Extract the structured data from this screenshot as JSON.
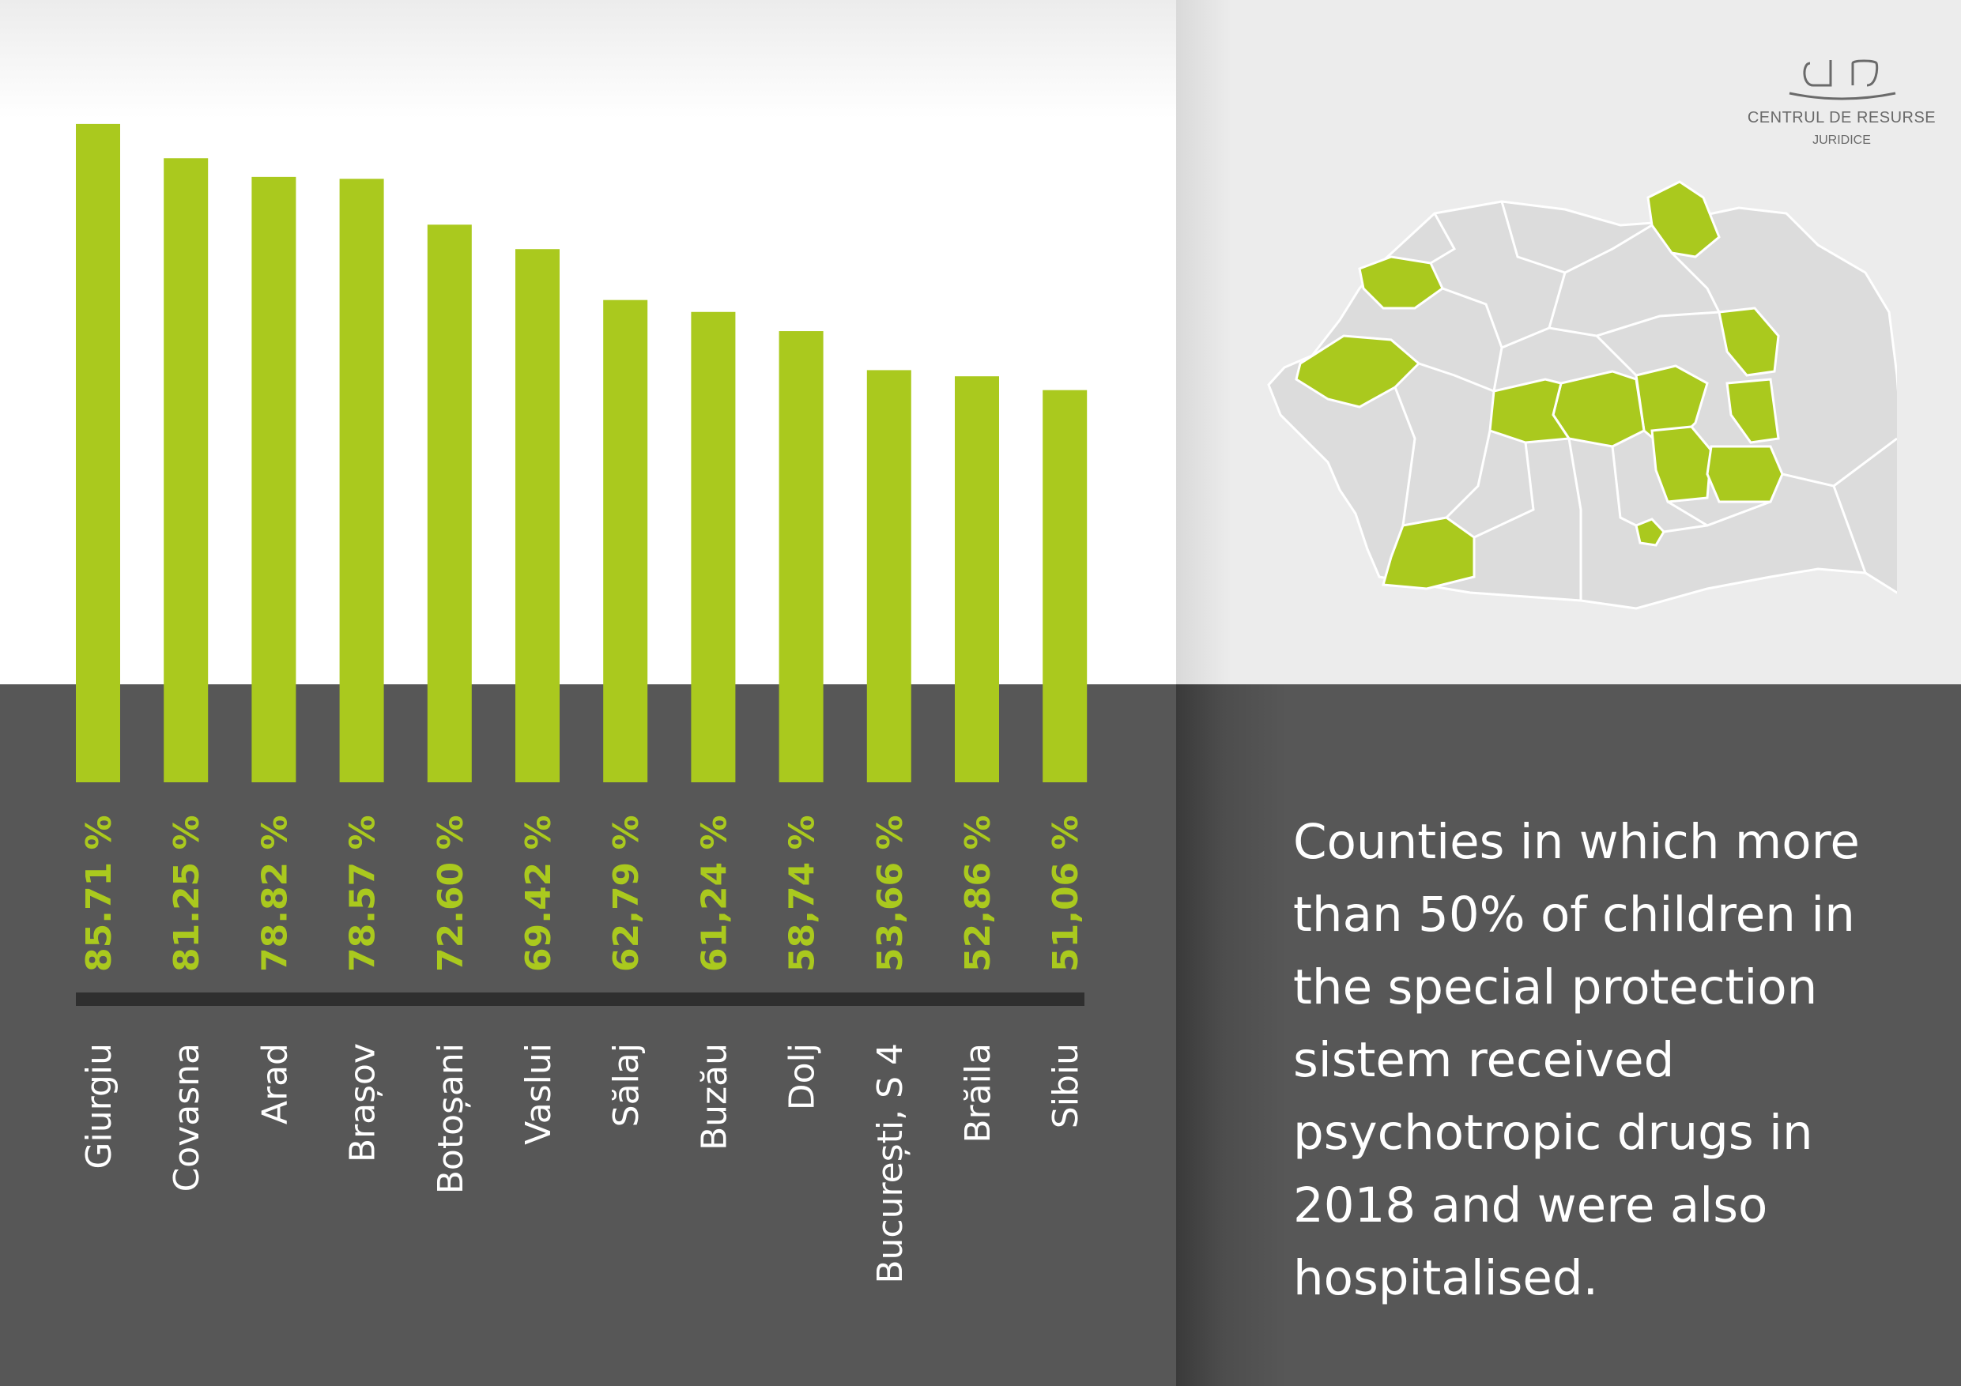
{
  "chart_data": {
    "type": "bar",
    "title": "",
    "xlabel": "",
    "ylabel": "",
    "ylim": [
      0,
      100
    ],
    "categories": [
      "Giurgiu",
      "Covasna",
      "Arad",
      "Brașov",
      "Botoșani",
      "Vaslui",
      "Sălaj",
      "Buzău",
      "Dolj",
      "București, S 4",
      "Brăila",
      "Sibiu"
    ],
    "values": [
      85.71,
      81.25,
      78.82,
      78.57,
      72.6,
      69.42,
      62.79,
      61.24,
      58.74,
      53.66,
      52.86,
      51.06
    ],
    "value_labels": [
      "85.71 %",
      "81.25 %",
      "78.82 %",
      "78.57 %",
      "72.60 %",
      "69.42 %",
      "62,79 %",
      "61,24 %",
      "58,74 %",
      "53,66 %",
      "52,86 %",
      "51,06 %"
    ],
    "grid": false,
    "legend": "none",
    "bar_color": "#aac91e"
  },
  "description": "Counties in which more than 50% of children in the special protection sistem received psychotropic drugs in 2018 and were also hospitalised.",
  "logo": {
    "line1": "CENTRUL DE RESURSE",
    "line2": "JURIDICE"
  },
  "map": {
    "name": "romania-county-map",
    "highlight_color": "#aac91e",
    "base_color": "#dcdcdc"
  }
}
